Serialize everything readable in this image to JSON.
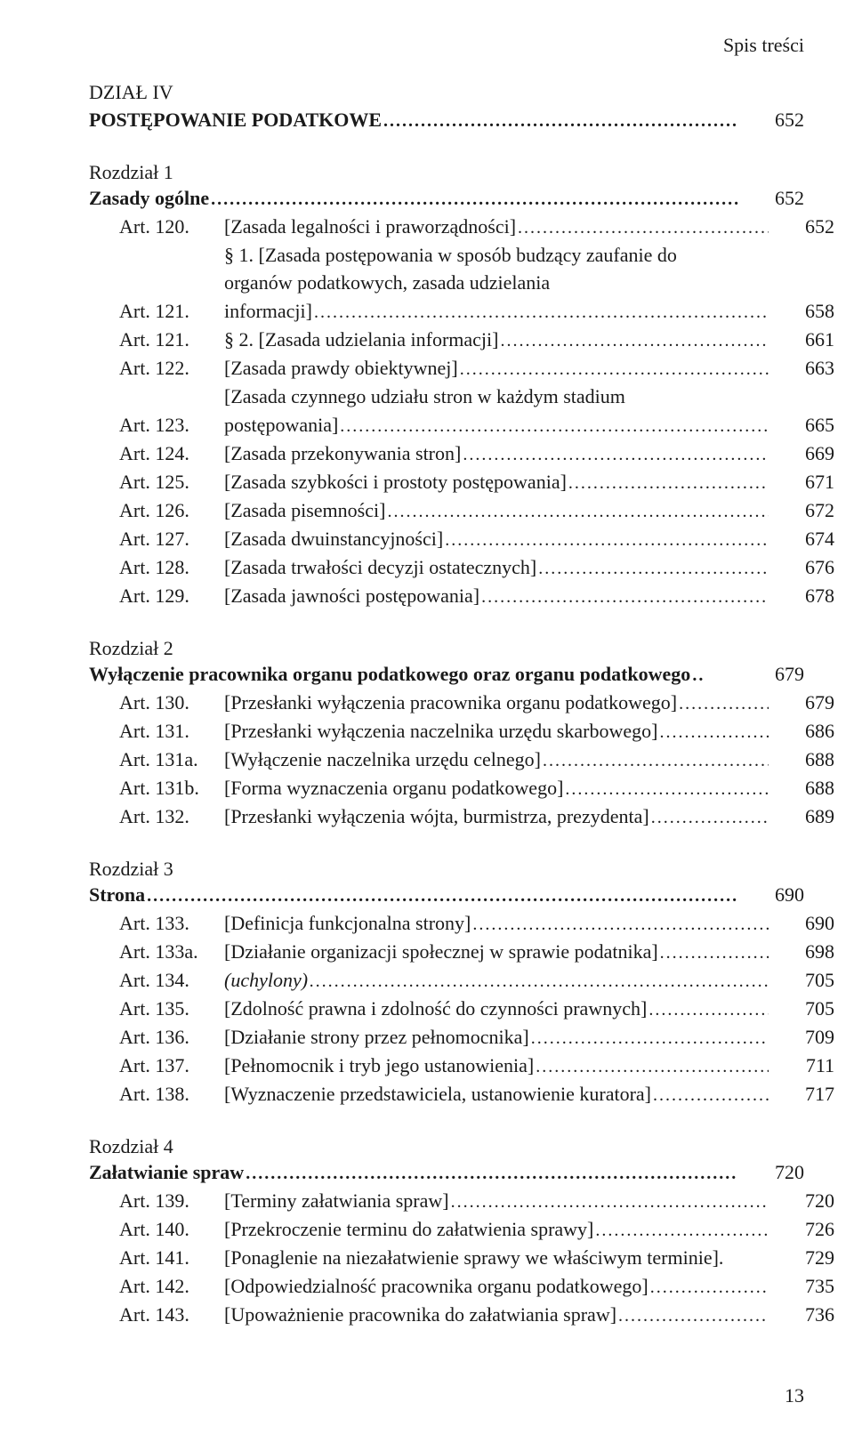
{
  "running_head": "Spis treści",
  "page_number": "13",
  "colors": {
    "text": "#1a1a1a",
    "background": "#ffffff"
  },
  "typography": {
    "family": "Times New Roman",
    "base_size_pt": 22
  },
  "dzial": {
    "label": "DZIAŁ IV",
    "title": "POSTĘPOWANIE PODATKOWE",
    "page": "652"
  },
  "chapters": [
    {
      "label": "Rozdział 1",
      "title": "Zasady ogólne",
      "page": "652",
      "entries": [
        {
          "art": "Art. 120.",
          "desc": "[Zasada legalności i praworządności]",
          "page": "652"
        },
        {
          "art": "Art. 121.",
          "desc_lines": [
            "§ 1. [Zasada postępowania w sposób budzący zaufanie do",
            "organów podatkowych, zasada udzielania informacji]"
          ],
          "page": "658"
        },
        {
          "art": "Art. 121.",
          "desc": "§ 2. [Zasada udzielania informacji]",
          "page": "661"
        },
        {
          "art": "Art. 122.",
          "desc": "[Zasada prawdy obiektywnej]",
          "page": "663"
        },
        {
          "art": "Art. 123.",
          "desc_lines": [
            "[Zasada czynnego udziału stron w każdym stadium",
            "postępowania]"
          ],
          "page": "665"
        },
        {
          "art": "Art. 124.",
          "desc": "[Zasada przekonywania stron]",
          "page": "669"
        },
        {
          "art": "Art. 125.",
          "desc": "[Zasada szybkości i prostoty postępowania]",
          "page": "671"
        },
        {
          "art": "Art. 126.",
          "desc": "[Zasada pisemności]",
          "page": "672"
        },
        {
          "art": "Art. 127.",
          "desc": "[Zasada dwuinstancyjności]",
          "page": "674"
        },
        {
          "art": "Art. 128.",
          "desc": "[Zasada trwałości decyzji ostatecznych]",
          "page": "676"
        },
        {
          "art": "Art. 129.",
          "desc": "[Zasada jawności postępowania]",
          "page": "678"
        }
      ]
    },
    {
      "label": "Rozdział 2",
      "title": "Wyłączenie pracownika organu podatkowego oraz organu podatkowego",
      "title_trailing": "..",
      "page": "679",
      "entries": [
        {
          "art": "Art. 130.",
          "desc": "[Przesłanki wyłączenia pracownika organu podatkowego]",
          "page": "679"
        },
        {
          "art": "Art. 131.",
          "desc": "[Przesłanki wyłączenia naczelnika urzędu skarbowego]",
          "page": "686"
        },
        {
          "art": "Art. 131a.",
          "desc": "[Wyłączenie naczelnika urzędu celnego]",
          "page": "688"
        },
        {
          "art": "Art. 131b.",
          "desc": "[Forma wyznaczenia organu podatkowego]",
          "page": "688"
        },
        {
          "art": "Art. 132.",
          "desc": "[Przesłanki wyłączenia wójta, burmistrza, prezydenta]",
          "page": "689"
        }
      ]
    },
    {
      "label": "Rozdział 3",
      "title": "Strona",
      "page": "690",
      "entries": [
        {
          "art": "Art. 133.",
          "desc": "[Definicja funkcjonalna strony]",
          "page": "690"
        },
        {
          "art": "Art. 133a.",
          "desc": "[Działanie organizacji społecznej w sprawie podatnika]",
          "page": "698"
        },
        {
          "art": "Art. 134.",
          "desc": "(uchylony)",
          "italic": true,
          "page": "705"
        },
        {
          "art": "Art. 135.",
          "desc": "[Zdolność prawna i zdolność do czynności prawnych]",
          "page": "705"
        },
        {
          "art": "Art. 136.",
          "desc": "[Działanie strony przez pełnomocnika]",
          "page": "709"
        },
        {
          "art": "Art. 137.",
          "desc": "[Pełnomocnik i tryb jego ustanowienia]",
          "page": "711"
        },
        {
          "art": "Art. 138.",
          "desc": "[Wyznaczenie przedstawiciela, ustanowienie kuratora]",
          "page": "717"
        }
      ]
    },
    {
      "label": "Rozdział 4",
      "title": "Załatwianie spraw",
      "page": "720",
      "entries": [
        {
          "art": "Art. 139.",
          "desc": "[Terminy załatwiania spraw]",
          "page": "720"
        },
        {
          "art": "Art. 140.",
          "desc": "[Przekroczenie terminu do załatwienia sprawy]",
          "page": "726"
        },
        {
          "art": "Art. 141.",
          "desc": "[Ponaglenie na niezałatwienie sprawy we właściwym terminie].",
          "page": "729",
          "no_leader": true
        },
        {
          "art": "Art. 142.",
          "desc": "[Odpowiedzialność pracownika organu podatkowego]",
          "page": "735"
        },
        {
          "art": "Art. 143.",
          "desc": "[Upoważnienie pracownika do załatwiania spraw]",
          "page": "736"
        }
      ]
    }
  ]
}
